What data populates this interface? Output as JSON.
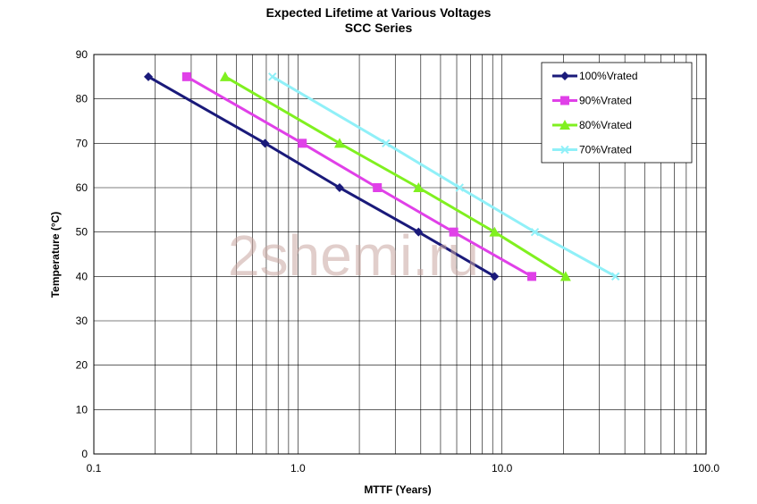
{
  "chart_data": {
    "type": "line",
    "title": "Expected Lifetime at Various Voltages",
    "subtitle": "SCC Series",
    "xlabel": "MTTF (Years)",
    "ylabel": "Temperature (°C)",
    "x_scale": "log",
    "xlim": [
      0.1,
      100
    ],
    "ylim": [
      0,
      90
    ],
    "x_ticks": [
      "0.1",
      "1.0",
      "10.0",
      "100.0"
    ],
    "y_ticks": [
      "0",
      "10",
      "20",
      "30",
      "40",
      "50",
      "60",
      "70",
      "80",
      "90"
    ],
    "grid": true,
    "legend_position": "top-right",
    "watermark": "2shemi.ru",
    "series": [
      {
        "name": "100%Vrated",
        "color": "#1a1a7a",
        "marker": "diamond",
        "points": [
          [
            0.185,
            85
          ],
          [
            0.69,
            70
          ],
          [
            1.6,
            60
          ],
          [
            3.9,
            50
          ],
          [
            9.2,
            40
          ]
        ]
      },
      {
        "name": "90%Vrated",
        "color": "#e040e8",
        "marker": "square",
        "points": [
          [
            0.285,
            85
          ],
          [
            1.05,
            70
          ],
          [
            2.45,
            60
          ],
          [
            5.8,
            50
          ],
          [
            14.0,
            40
          ]
        ]
      },
      {
        "name": "80%Vrated",
        "color": "#80f020",
        "marker": "triangle",
        "points": [
          [
            0.44,
            85
          ],
          [
            1.6,
            70
          ],
          [
            3.9,
            60
          ],
          [
            9.2,
            50
          ],
          [
            20.5,
            40
          ]
        ]
      },
      {
        "name": "70%Vrated",
        "color": "#90f0f8",
        "marker": "x",
        "points": [
          [
            0.75,
            85
          ],
          [
            2.7,
            70
          ],
          [
            6.2,
            60
          ],
          [
            14.5,
            50
          ],
          [
            36.0,
            40
          ]
        ]
      }
    ]
  }
}
